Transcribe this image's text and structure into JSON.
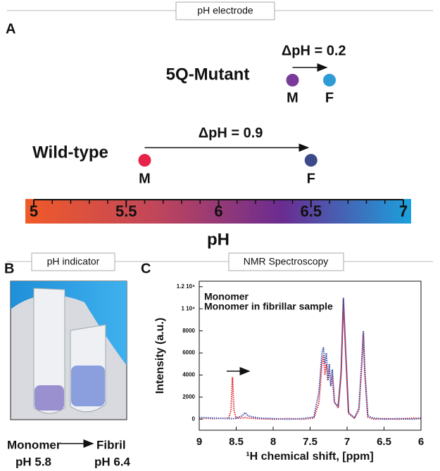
{
  "panel_a": {
    "header": "pH electrode",
    "label": "A",
    "axis_label": "pH",
    "lim": [
      5,
      7
    ],
    "ticks": [
      5,
      5.5,
      6,
      6.5,
      7
    ],
    "minor_ticks": [
      5.1,
      5.2,
      5.3,
      5.4,
      5.6,
      5.7,
      5.8,
      5.9,
      6.1,
      6.2,
      6.3,
      6.4,
      6.6,
      6.7,
      6.8,
      6.9
    ],
    "gradient": [
      "#f05a28",
      "#c2465a",
      "#6a2c91",
      "#1ba1dc"
    ],
    "samples": [
      {
        "name": "5Q-Mutant",
        "delta": "ΔpH = 0.2",
        "points": [
          {
            "label": "M",
            "value": 6.4,
            "color": "#7a3a9a"
          },
          {
            "label": "F",
            "value": 6.6,
            "color": "#2e9bd6"
          }
        ]
      },
      {
        "name": "Wild-type",
        "delta": "ΔpH = 0.9",
        "points": [
          {
            "label": "M",
            "value": 5.6,
            "color": "#e8234a"
          },
          {
            "label": "F",
            "value": 6.5,
            "color": "#3c4a8a"
          }
        ]
      }
    ]
  },
  "panel_b": {
    "header": "pH indicator",
    "label": "B",
    "samples": [
      {
        "name": "Monomer",
        "ph": "pH 5.8"
      },
      {
        "name": "Fibril",
        "ph": "pH 6.4"
      }
    ]
  },
  "chart_data": {
    "type": "line",
    "panel_label": "C",
    "header": "NMR Spectroscopy",
    "x_label": "¹H chemical shift, [ppm]",
    "y_label": "Intensity (a.u.)",
    "xlim": [
      9,
      6
    ],
    "xticks": [
      9,
      8.5,
      8,
      7.5,
      7,
      6.5,
      6
    ],
    "ylim": [
      -1000,
      12500
    ],
    "yticks": [
      0,
      2000,
      4000,
      6000,
      8000,
      {
        "value": 10000,
        "label": "1 10⁴"
      },
      {
        "value": 12000,
        "label": "1.2 10⁴"
      }
    ],
    "x": [
      9,
      8.8,
      8.6,
      8.57,
      8.55,
      8.53,
      8.5,
      8.42,
      8.38,
      8.34,
      8.2,
      8.0,
      7.8,
      7.6,
      7.45,
      7.38,
      7.34,
      7.32,
      7.3,
      7.28,
      7.26,
      7.24,
      7.22,
      7.2,
      7.17,
      7.12,
      7.08,
      7.05,
      7.02,
      6.98,
      6.9,
      6.84,
      6.8,
      6.78,
      6.76,
      6.72,
      6.65,
      6.5,
      6.3,
      6.1,
      6.0
    ],
    "series": [
      {
        "name": "Monomer",
        "color": "#e0262b",
        "values": [
          100,
          50,
          100,
          800,
          3800,
          800,
          100,
          100,
          150,
          100,
          50,
          0,
          50,
          0,
          100,
          1500,
          5000,
          5800,
          4000,
          5000,
          3500,
          4500,
          3000,
          4000,
          1500,
          1000,
          4000,
          10800,
          6000,
          500,
          100,
          800,
          5000,
          7800,
          4000,
          200,
          0,
          50,
          0,
          100,
          50
        ]
      },
      {
        "name": "Monomer in fibrillar sample",
        "color": "#3a4aa8",
        "values": [
          150,
          100,
          50,
          50,
          50,
          50,
          100,
          300,
          600,
          300,
          100,
          50,
          0,
          50,
          200,
          2500,
          6000,
          6500,
          5000,
          6000,
          3500,
          5000,
          3000,
          4500,
          1500,
          1200,
          4500,
          11000,
          6500,
          600,
          100,
          1000,
          5500,
          8000,
          4500,
          300,
          100,
          0,
          50,
          0,
          100
        ]
      }
    ]
  }
}
